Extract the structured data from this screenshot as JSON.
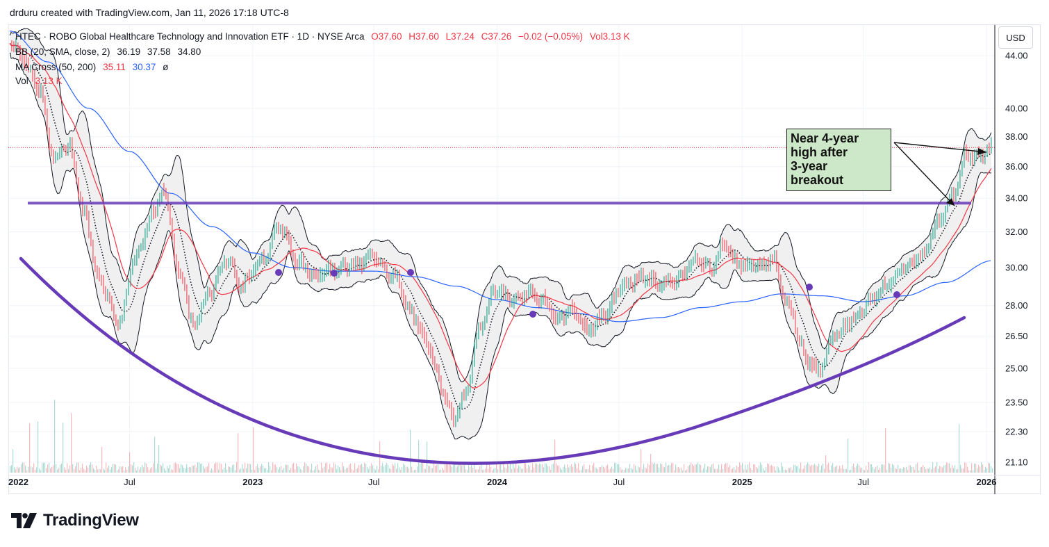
{
  "credit": "drduru created with TradingView.com, Jan 11, 2026 17:18 UTC-8",
  "header": {
    "symbol_line": "HTEC · ROBO Global Healthcare Technology and Innovation ETF · 1D · NYSE Arca",
    "ohlc": [
      "O37.60",
      "H37.60",
      "L37.24",
      "C37.26",
      "−0.02 (−0.05%)",
      "Vol3.13 K"
    ],
    "bb_label": "BB (20, SMA, close, 2)",
    "bb_values": [
      "36.19",
      "37.58",
      "34.80"
    ],
    "ma_label": "MA Cross (50, 200)",
    "ma_values": [
      "35.11",
      "30.37",
      "ø"
    ],
    "vol_label": "Vol",
    "vol_value": "3.13 K",
    "currency": "USD"
  },
  "annotation": {
    "lines": [
      "Near 4-year",
      "high after",
      "3-year",
      "breakout"
    ]
  },
  "logo": {
    "name": "TradingView",
    "mark": "17"
  },
  "colors": {
    "sma50": "#f23645",
    "sma200": "#2962ff",
    "trendline": "#673ab7",
    "bb_fill": "#ececec",
    "up": "#089981",
    "down": "#f23645",
    "annotation_fill": "#cde8c8"
  },
  "chart_data": {
    "type": "line",
    "scale": "log",
    "x_ticks": [
      "2022",
      "Jul",
      "2023",
      "Jul",
      "2024",
      "Jul",
      "2025",
      "Jul",
      "2026"
    ],
    "x_tick_dates": [
      "2022-01-01",
      "2022-07-01",
      "2023-01-01",
      "2023-07-01",
      "2024-01-01",
      "2024-07-01",
      "2025-01-01",
      "2025-07-01",
      "2026-01-01"
    ],
    "y_ticks": [
      "44.00",
      "40.00",
      "38.00",
      "36.00",
      "34.00",
      "32.00",
      "30.00",
      "28.00",
      "26.50",
      "25.00",
      "23.50",
      "22.30",
      "21.10"
    ],
    "ylim": [
      20.6,
      46.5
    ],
    "last_price": 37.26,
    "horizontal_line": 33.7,
    "series": [
      {
        "name": "close",
        "x": [
          "2022-01-03",
          "2022-01-20",
          "2022-02-15",
          "2022-03-10",
          "2022-04-01",
          "2022-04-25",
          "2022-05-15",
          "2022-06-15",
          "2022-07-10",
          "2022-08-05",
          "2022-08-20",
          "2022-09-15",
          "2022-10-05",
          "2022-10-25",
          "2022-11-25",
          "2022-12-15",
          "2023-01-15",
          "2023-02-10",
          "2023-03-10",
          "2023-04-01",
          "2023-05-01",
          "2023-06-01",
          "2023-07-01",
          "2023-08-01",
          "2023-08-25",
          "2023-09-20",
          "2023-10-10",
          "2023-10-27",
          "2023-11-15",
          "2023-12-05",
          "2023-12-28",
          "2024-01-25",
          "2024-02-15",
          "2024-03-10",
          "2024-04-01",
          "2024-04-20",
          "2024-05-15",
          "2024-06-10",
          "2024-07-05",
          "2024-08-05",
          "2024-09-01",
          "2024-09-25",
          "2024-10-20",
          "2024-11-15",
          "2024-12-05",
          "2024-12-25",
          "2025-01-25",
          "2025-02-15",
          "2025-03-10",
          "2025-04-07",
          "2025-04-25",
          "2025-05-20",
          "2025-06-15",
          "2025-07-10",
          "2025-08-05",
          "2025-09-01",
          "2025-09-25",
          "2025-10-20",
          "2025-11-10",
          "2025-12-01",
          "2025-12-20",
          "2026-01-09"
        ],
        "values": [
          45.2,
          44.0,
          41.5,
          36.5,
          37.5,
          33.0,
          29.5,
          27.2,
          30.5,
          33.0,
          34.5,
          29.5,
          27.0,
          28.5,
          30.5,
          29.0,
          30.5,
          32.3,
          30.3,
          29.6,
          29.9,
          30.1,
          30.6,
          29.5,
          27.6,
          26.1,
          24.2,
          22.8,
          23.8,
          26.8,
          28.8,
          28.3,
          28.6,
          28.3,
          27.3,
          27.8,
          26.8,
          27.5,
          29.0,
          29.5,
          29.1,
          29.3,
          30.4,
          30.0,
          31.3,
          30.2,
          30.0,
          30.5,
          28.1,
          25.4,
          24.9,
          26.6,
          27.3,
          28.2,
          29.1,
          30.0,
          30.6,
          32.5,
          34.0,
          36.8,
          36.6,
          37.26
        ]
      },
      {
        "name": "MA 200",
        "x": [
          "2022-01-03",
          "2022-03-01",
          "2022-05-01",
          "2022-07-01",
          "2022-09-01",
          "2022-11-01",
          "2023-01-01",
          "2023-03-01",
          "2023-05-01",
          "2023-07-01",
          "2023-09-01",
          "2023-11-01",
          "2024-01-01",
          "2024-03-01",
          "2024-05-01",
          "2024-07-01",
          "2024-09-01",
          "2024-11-01",
          "2025-01-01",
          "2025-03-01",
          "2025-05-01",
          "2025-07-01",
          "2025-09-01",
          "2025-11-01",
          "2026-01-09"
        ],
        "values": [
          46.0,
          43.5,
          40.0,
          37.0,
          34.3,
          32.3,
          30.8,
          30.0,
          29.8,
          29.8,
          29.5,
          29.0,
          28.3,
          27.9,
          27.6,
          27.2,
          27.4,
          27.9,
          28.2,
          28.6,
          28.5,
          28.2,
          28.5,
          29.2,
          30.37
        ]
      }
    ]
  }
}
